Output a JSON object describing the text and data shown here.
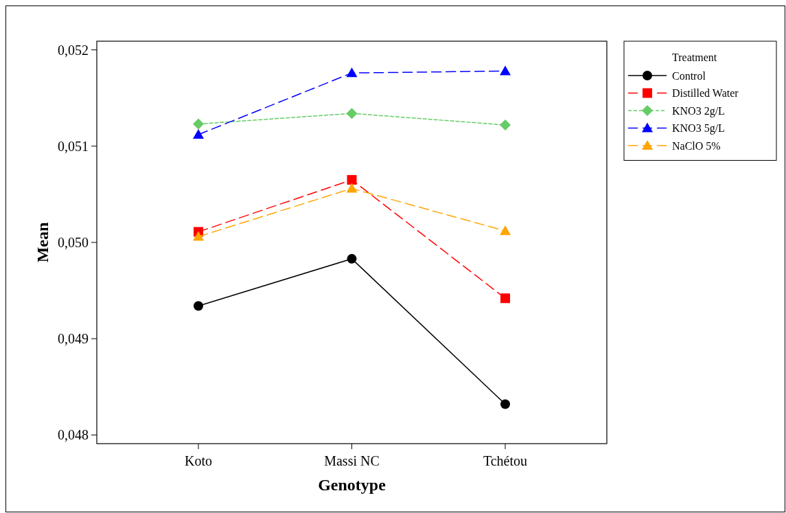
{
  "chart_data": {
    "type": "line",
    "xlabel": "Genotype",
    "ylabel": "Mean",
    "legend_title": "Treatment",
    "legend": "right",
    "grid": false,
    "categories": [
      "Koto",
      "Massi NC",
      "Tchétou"
    ],
    "ylim": [
      0.04791,
      0.05209
    ],
    "yticks": [
      {
        "value": 0.048,
        "label": "0,048"
      },
      {
        "value": 0.049,
        "label": "0,049"
      },
      {
        "value": 0.05,
        "label": "0,050"
      },
      {
        "value": 0.051,
        "label": "0,051"
      },
      {
        "value": 0.052,
        "label": "0,052"
      }
    ],
    "series": [
      {
        "name": "Control",
        "color": "#000000",
        "marker": "circle",
        "line_style": "solid",
        "values": [
          0.04934,
          0.04983,
          0.04832
        ]
      },
      {
        "name": "Distilled Water",
        "color": "#ff0000",
        "marker": "square",
        "line_style": "dashed",
        "values": [
          0.05011,
          0.05065,
          0.04942
        ]
      },
      {
        "name": "KNO3 2g/L",
        "color": "#66cc66",
        "marker": "diamond",
        "line_style": "dotted",
        "values": [
          0.05123,
          0.05134,
          0.05122
        ]
      },
      {
        "name": "KNO3 5g/L",
        "color": "#0000ff",
        "marker": "triangle",
        "line_style": "dashed",
        "values": [
          0.05112,
          0.05176,
          0.05178
        ]
      },
      {
        "name": "NaClO 5%",
        "color": "#ffa500",
        "marker": "triangle",
        "line_style": "dashed",
        "values": [
          0.05006,
          0.05056,
          0.05012
        ]
      }
    ]
  }
}
